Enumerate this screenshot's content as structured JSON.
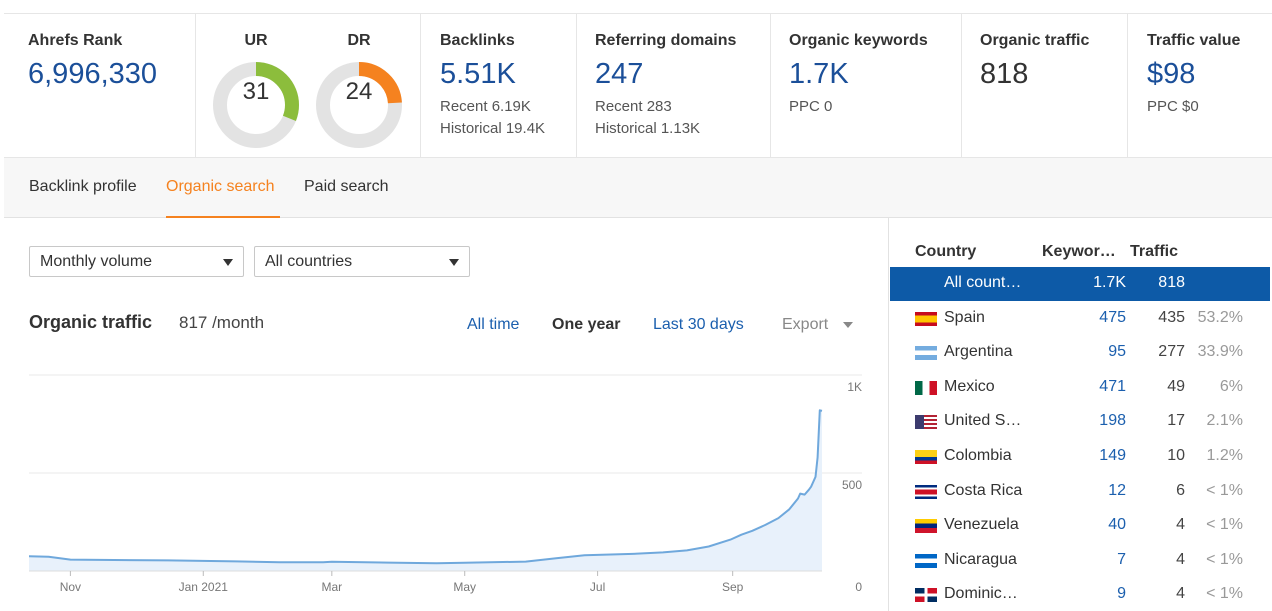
{
  "metrics": {
    "ahrefs_rank": {
      "label": "Ahrefs Rank",
      "value": "6,996,330"
    },
    "ur": {
      "label": "UR",
      "value": "31",
      "score": 31,
      "color": "#8cbd3c"
    },
    "dr": {
      "label": "DR",
      "value": "24",
      "score": 24,
      "color": "#f5821f"
    },
    "backlinks": {
      "label": "Backlinks",
      "value": "5.51K",
      "recent": "Recent 6.19K",
      "historical": "Historical 19.4K"
    },
    "referring_domains": {
      "label": "Referring domains",
      "value": "247",
      "recent": "Recent 283",
      "historical": "Historical 1.13K"
    },
    "organic_keywords": {
      "label": "Organic keywords",
      "value": "1.7K",
      "ppc": "PPC 0"
    },
    "organic_traffic": {
      "label": "Organic traffic",
      "value": "818"
    },
    "traffic_value": {
      "label": "Traffic value",
      "value": "$98",
      "ppc": "PPC $0"
    }
  },
  "tabs": [
    {
      "label": "Backlink profile",
      "active": false
    },
    {
      "label": "Organic search",
      "active": true
    },
    {
      "label": "Paid search",
      "active": false
    }
  ],
  "filters": {
    "volume": {
      "value": "Monthly volume"
    },
    "countries": {
      "value": "All countries"
    }
  },
  "organic": {
    "title": "Organic traffic",
    "value": "817 /month",
    "ranges": {
      "all_time": "All time",
      "one_year": "One year",
      "last_30": "Last 30 days",
      "export": "Export"
    }
  },
  "chart_data": {
    "type": "area",
    "title": "",
    "x_ticks": [
      "Nov",
      "Jan 2021",
      "Mar",
      "May",
      "Jul",
      "Sep"
    ],
    "y_ticks": [
      "1K",
      "500",
      "0"
    ],
    "ylim": [
      0,
      1000
    ],
    "grid": true,
    "series": [
      {
        "color": "#6fa8dc",
        "points": [
          [
            "2020-10-13",
            75
          ],
          [
            "2020-10-22",
            73
          ],
          [
            "2020-11-01",
            58
          ],
          [
            "2020-11-21",
            56
          ],
          [
            "2020-12-16",
            54
          ],
          [
            "2021-01-16",
            49
          ],
          [
            "2021-02-05",
            45
          ],
          [
            "2021-02-25",
            45
          ],
          [
            "2021-03-01",
            47
          ],
          [
            "2021-03-27",
            43
          ],
          [
            "2021-04-18",
            40
          ],
          [
            "2021-05-01",
            42
          ],
          [
            "2021-05-29",
            48
          ],
          [
            "2021-06-12",
            65
          ],
          [
            "2021-06-25",
            80
          ],
          [
            "2021-07-17",
            87
          ],
          [
            "2021-07-31",
            95
          ],
          [
            "2021-08-11",
            105
          ],
          [
            "2021-08-21",
            125
          ],
          [
            "2021-08-31",
            160
          ],
          [
            "2021-09-05",
            185
          ],
          [
            "2021-09-10",
            205
          ],
          [
            "2021-09-16",
            235
          ],
          [
            "2021-09-22",
            270
          ],
          [
            "2021-09-27",
            315
          ],
          [
            "2021-10-01",
            370
          ],
          [
            "2021-10-02",
            395
          ],
          [
            "2021-10-04",
            390
          ],
          [
            "2021-10-06",
            415
          ],
          [
            "2021-10-07",
            430
          ],
          [
            "2021-10-09",
            480
          ],
          [
            "2021-10-10",
            580
          ],
          [
            "2021-10-11",
            820
          ],
          [
            "2021-10-12",
            817
          ]
        ]
      }
    ]
  },
  "countries": {
    "headers": {
      "country": "Country",
      "keywords": "Keywor…",
      "traffic": "Traffic"
    },
    "rows": [
      {
        "name": "All count…",
        "keywords": "1.7K",
        "traffic": "818",
        "percent": "",
        "flag": "",
        "selected": true
      },
      {
        "name": "Spain",
        "keywords": "475",
        "traffic": "435",
        "percent": "53.2%",
        "flag": "flag-es"
      },
      {
        "name": "Argentina",
        "keywords": "95",
        "traffic": "277",
        "percent": "33.9%",
        "flag": "flag-ar"
      },
      {
        "name": "Mexico",
        "keywords": "471",
        "traffic": "49",
        "percent": "6%",
        "flag": "flag-mx"
      },
      {
        "name": "United S…",
        "keywords": "198",
        "traffic": "17",
        "percent": "2.1%",
        "flag": "flag-us"
      },
      {
        "name": "Colombia",
        "keywords": "149",
        "traffic": "10",
        "percent": "1.2%",
        "flag": "flag-co"
      },
      {
        "name": "Costa Rica",
        "keywords": "12",
        "traffic": "6",
        "percent": "< 1%",
        "flag": "flag-cr"
      },
      {
        "name": "Venezuela",
        "keywords": "40",
        "traffic": "4",
        "percent": "< 1%",
        "flag": "flag-ve"
      },
      {
        "name": "Nicaragua",
        "keywords": "7",
        "traffic": "4",
        "percent": "< 1%",
        "flag": "flag-ni"
      },
      {
        "name": "Dominic…",
        "keywords": "9",
        "traffic": "4",
        "percent": "< 1%",
        "flag": "flag-do"
      }
    ]
  }
}
